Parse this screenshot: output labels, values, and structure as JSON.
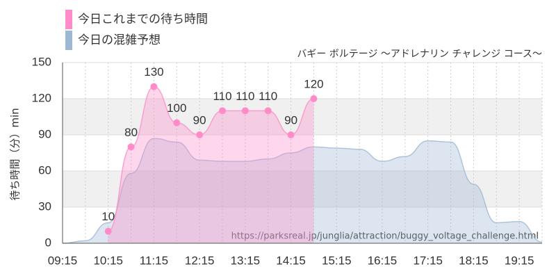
{
  "chart_data": {
    "type": "area",
    "title": "バギー ボルテージ 〜アドレナリン チャレンジ コース〜",
    "y_label": "待ち時間（分）min",
    "watermark": "https://parksreal.jp/junglia/attraction/buggy_voltage_challenge.html",
    "categories": [
      "09:15",
      null,
      "10:15",
      null,
      "11:15",
      null,
      "12:15",
      null,
      "13:15",
      null,
      "14:15",
      null,
      "15:15",
      null,
      "16:15",
      null,
      "17:15",
      null,
      "18:15",
      null,
      "19:15",
      null
    ],
    "series": [
      {
        "name": "今日これまでの待ち時間",
        "color": "#ff8cc8",
        "markers": true,
        "values": [
          null,
          null,
          10,
          80,
          130,
          100,
          90,
          110,
          110,
          110,
          90,
          120,
          null,
          null,
          null,
          null,
          null,
          null,
          null,
          null,
          null,
          null
        ]
      },
      {
        "name": "今日の混雑予想",
        "color": "#9db8d3",
        "markers": false,
        "values": [
          0,
          2,
          17,
          58,
          87,
          84,
          69,
          68,
          68,
          70,
          75,
          80,
          79,
          78,
          68,
          72,
          85,
          84,
          49,
          17,
          18,
          1
        ]
      }
    ],
    "ylim": [
      0,
      150
    ],
    "yticks": [
      0,
      30,
      60,
      90,
      120,
      150
    ],
    "grid": true,
    "legend": "top-left"
  }
}
